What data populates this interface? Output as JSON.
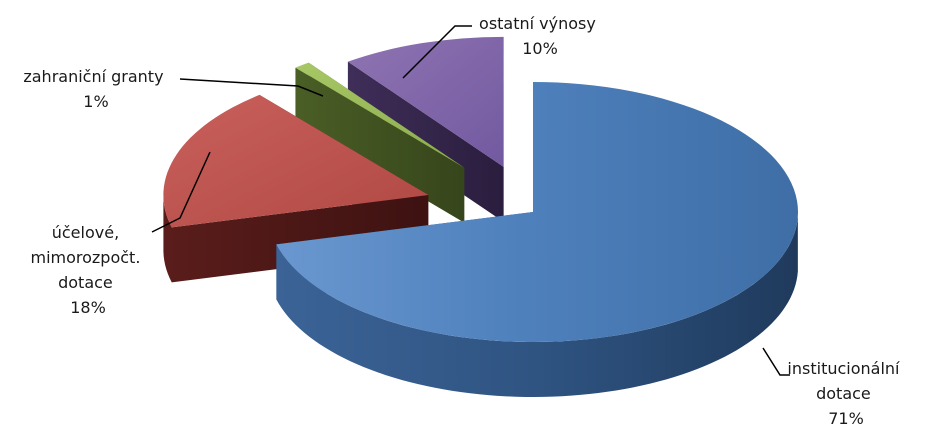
{
  "chart_data": {
    "type": "pie",
    "style": "3d-exploded",
    "legend": "none",
    "slices": [
      {
        "label_lines": [
          "institucionální",
          "dotace"
        ],
        "value": 71,
        "value_label": "71%",
        "color": "#4F81BD"
      },
      {
        "label_lines": [
          "účelové,",
          "mimorozpočt.",
          "dotace"
        ],
        "value": 18,
        "value_label": "18%",
        "color": "#C0504D"
      },
      {
        "label_lines": [
          "zahraniční granty"
        ],
        "value": 1,
        "value_label": "1%",
        "color": "#9BBB59"
      },
      {
        "label_lines": [
          "ostatní výnosy"
        ],
        "value": 10,
        "value_label": "10%",
        "color": "#8064A2"
      }
    ]
  }
}
